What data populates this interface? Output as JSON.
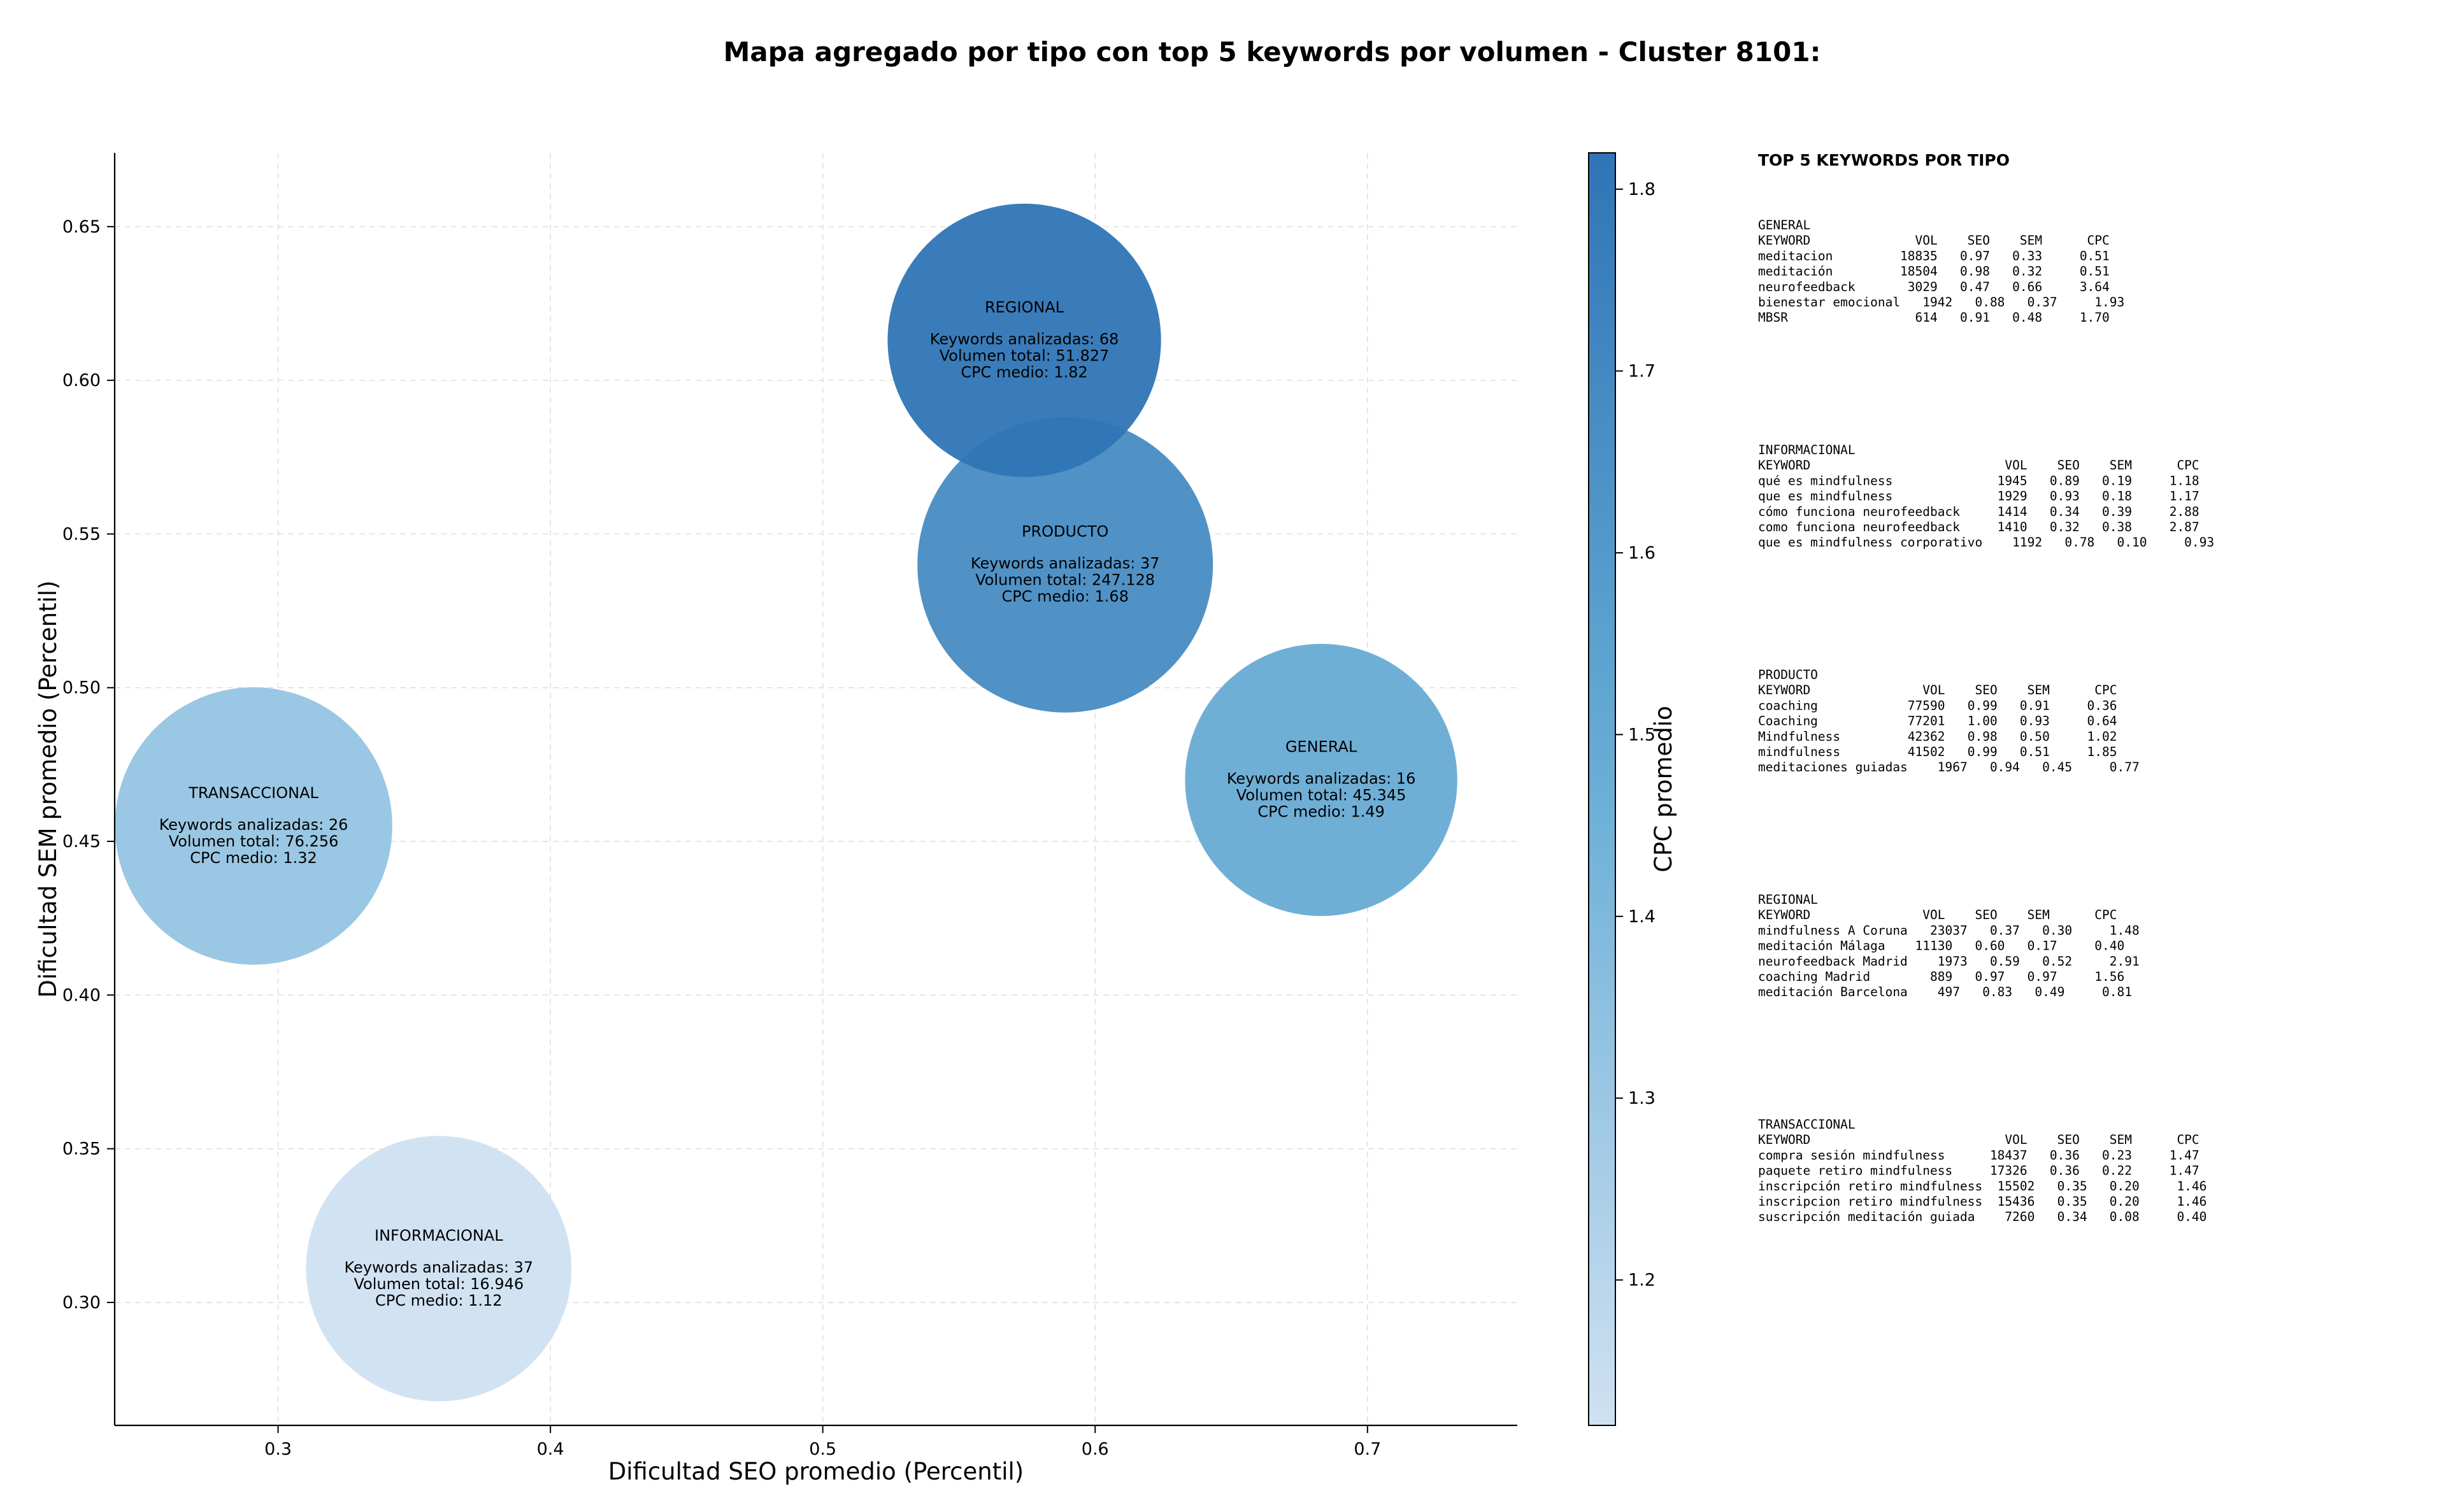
{
  "chart_data": {
    "type": "scatter",
    "title": "Mapa agregado por tipo con top 5 keywords por volumen - Cluster 8101:",
    "xlabel": "Dificultad SEO promedio (Percentil)",
    "ylabel": "Dificultad SEM promedio (Percentil)",
    "xlim": [
      0.24,
      0.755
    ],
    "ylim": [
      0.26,
      0.674
    ],
    "xticks": [
      "0.3",
      "0.4",
      "0.5",
      "0.6",
      "0.7"
    ],
    "yticks": [
      "0.30",
      "0.35",
      "0.40",
      "0.45",
      "0.50",
      "0.55",
      "0.60",
      "0.65"
    ],
    "grid": true,
    "colorbar": {
      "label": "CPC promedio",
      "range": [
        1.12,
        1.82
      ],
      "ticks": [
        "1.2",
        "1.3",
        "1.4",
        "1.5",
        "1.6",
        "1.7",
        "1.8"
      ],
      "colors": [
        "#cfe1f2",
        "#2f75b6"
      ]
    },
    "points": [
      {
        "name": "REGIONAL",
        "x": 0.574,
        "y": 0.613,
        "size_value": 51827,
        "cpc": 1.82,
        "lines": [
          "Keywords analizadas: 68",
          "Volumen total: 51.827",
          "CPC medio: 1.82"
        ]
      },
      {
        "name": "PRODUCTO",
        "x": 0.589,
        "y": 0.54,
        "size_value": 247128,
        "cpc": 1.68,
        "lines": [
          "Keywords analizadas: 37",
          "Volumen total: 247.128",
          "CPC medio: 1.68"
        ]
      },
      {
        "name": "GENERAL",
        "x": 0.683,
        "y": 0.47,
        "size_value": 45345,
        "cpc": 1.49,
        "lines": [
          "Keywords analizadas: 16",
          "Volumen total: 45.345",
          "CPC medio: 1.49"
        ]
      },
      {
        "name": "TRANSACCIONAL",
        "x": 0.291,
        "y": 0.455,
        "size_value": 76256,
        "cpc": 1.32,
        "lines": [
          "Keywords analizadas: 26",
          "Volumen total: 76.256",
          "CPC medio: 1.32"
        ]
      },
      {
        "name": "INFORMACIONAL",
        "x": 0.359,
        "y": 0.311,
        "size_value": 16946,
        "cpc": 1.12,
        "lines": [
          "Keywords analizadas: 37",
          "Volumen total: 16.946",
          "CPC medio: 1.12"
        ]
      }
    ]
  },
  "side_panel": {
    "title": "TOP 5 KEYWORDS POR TIPO",
    "sections": [
      {
        "name": "GENERAL",
        "lines": [
          "KEYWORD              VOL    SEO    SEM      CPC",
          "meditacion         18835   0.97   0.33     0.51",
          "meditación         18504   0.98   0.32     0.51",
          "neurofeedback       3029   0.47   0.66     3.64",
          "bienestar emocional   1942   0.88   0.37     1.93",
          "MBSR                 614   0.91   0.48     1.70"
        ]
      },
      {
        "name": "INFORMACIONAL",
        "lines": [
          "KEYWORD                          VOL    SEO    SEM      CPC",
          "qué es mindfulness              1945   0.89   0.19     1.18",
          "que es mindfulness              1929   0.93   0.18     1.17",
          "cómo funciona neurofeedback     1414   0.34   0.39     2.88",
          "como funciona neurofeedback     1410   0.32   0.38     2.87",
          "que es mindfulness corporativo    1192   0.78   0.10     0.93"
        ]
      },
      {
        "name": "PRODUCTO",
        "lines": [
          "KEYWORD               VOL    SEO    SEM      CPC",
          "coaching            77590   0.99   0.91     0.36",
          "Coaching            77201   1.00   0.93     0.64",
          "Mindfulness         42362   0.98   0.50     1.02",
          "mindfulness         41502   0.99   0.51     1.85",
          "meditaciones guiadas    1967   0.94   0.45     0.77"
        ]
      },
      {
        "name": "REGIONAL",
        "lines": [
          "KEYWORD               VOL    SEO    SEM      CPC",
          "mindfulness A Coruna   23037   0.37   0.30     1.48",
          "meditación Málaga    11130   0.60   0.17     0.40",
          "neurofeedback Madrid    1973   0.59   0.52     2.91",
          "coaching Madrid        889   0.97   0.97     1.56",
          "meditación Barcelona    497   0.83   0.49     0.81"
        ]
      },
      {
        "name": "TRANSACCIONAL",
        "lines": [
          "KEYWORD                          VOL    SEO    SEM      CPC",
          "compra sesión mindfulness      18437   0.36   0.23     1.47",
          "paquete retiro mindfulness     17326   0.36   0.22     1.47",
          "inscripción retiro mindfulness  15502   0.35   0.20     1.46",
          "inscripcion retiro mindfulness  15436   0.35   0.20     1.46",
          "suscripción meditación guiada    7260   0.34   0.08     0.40"
        ]
      }
    ]
  }
}
